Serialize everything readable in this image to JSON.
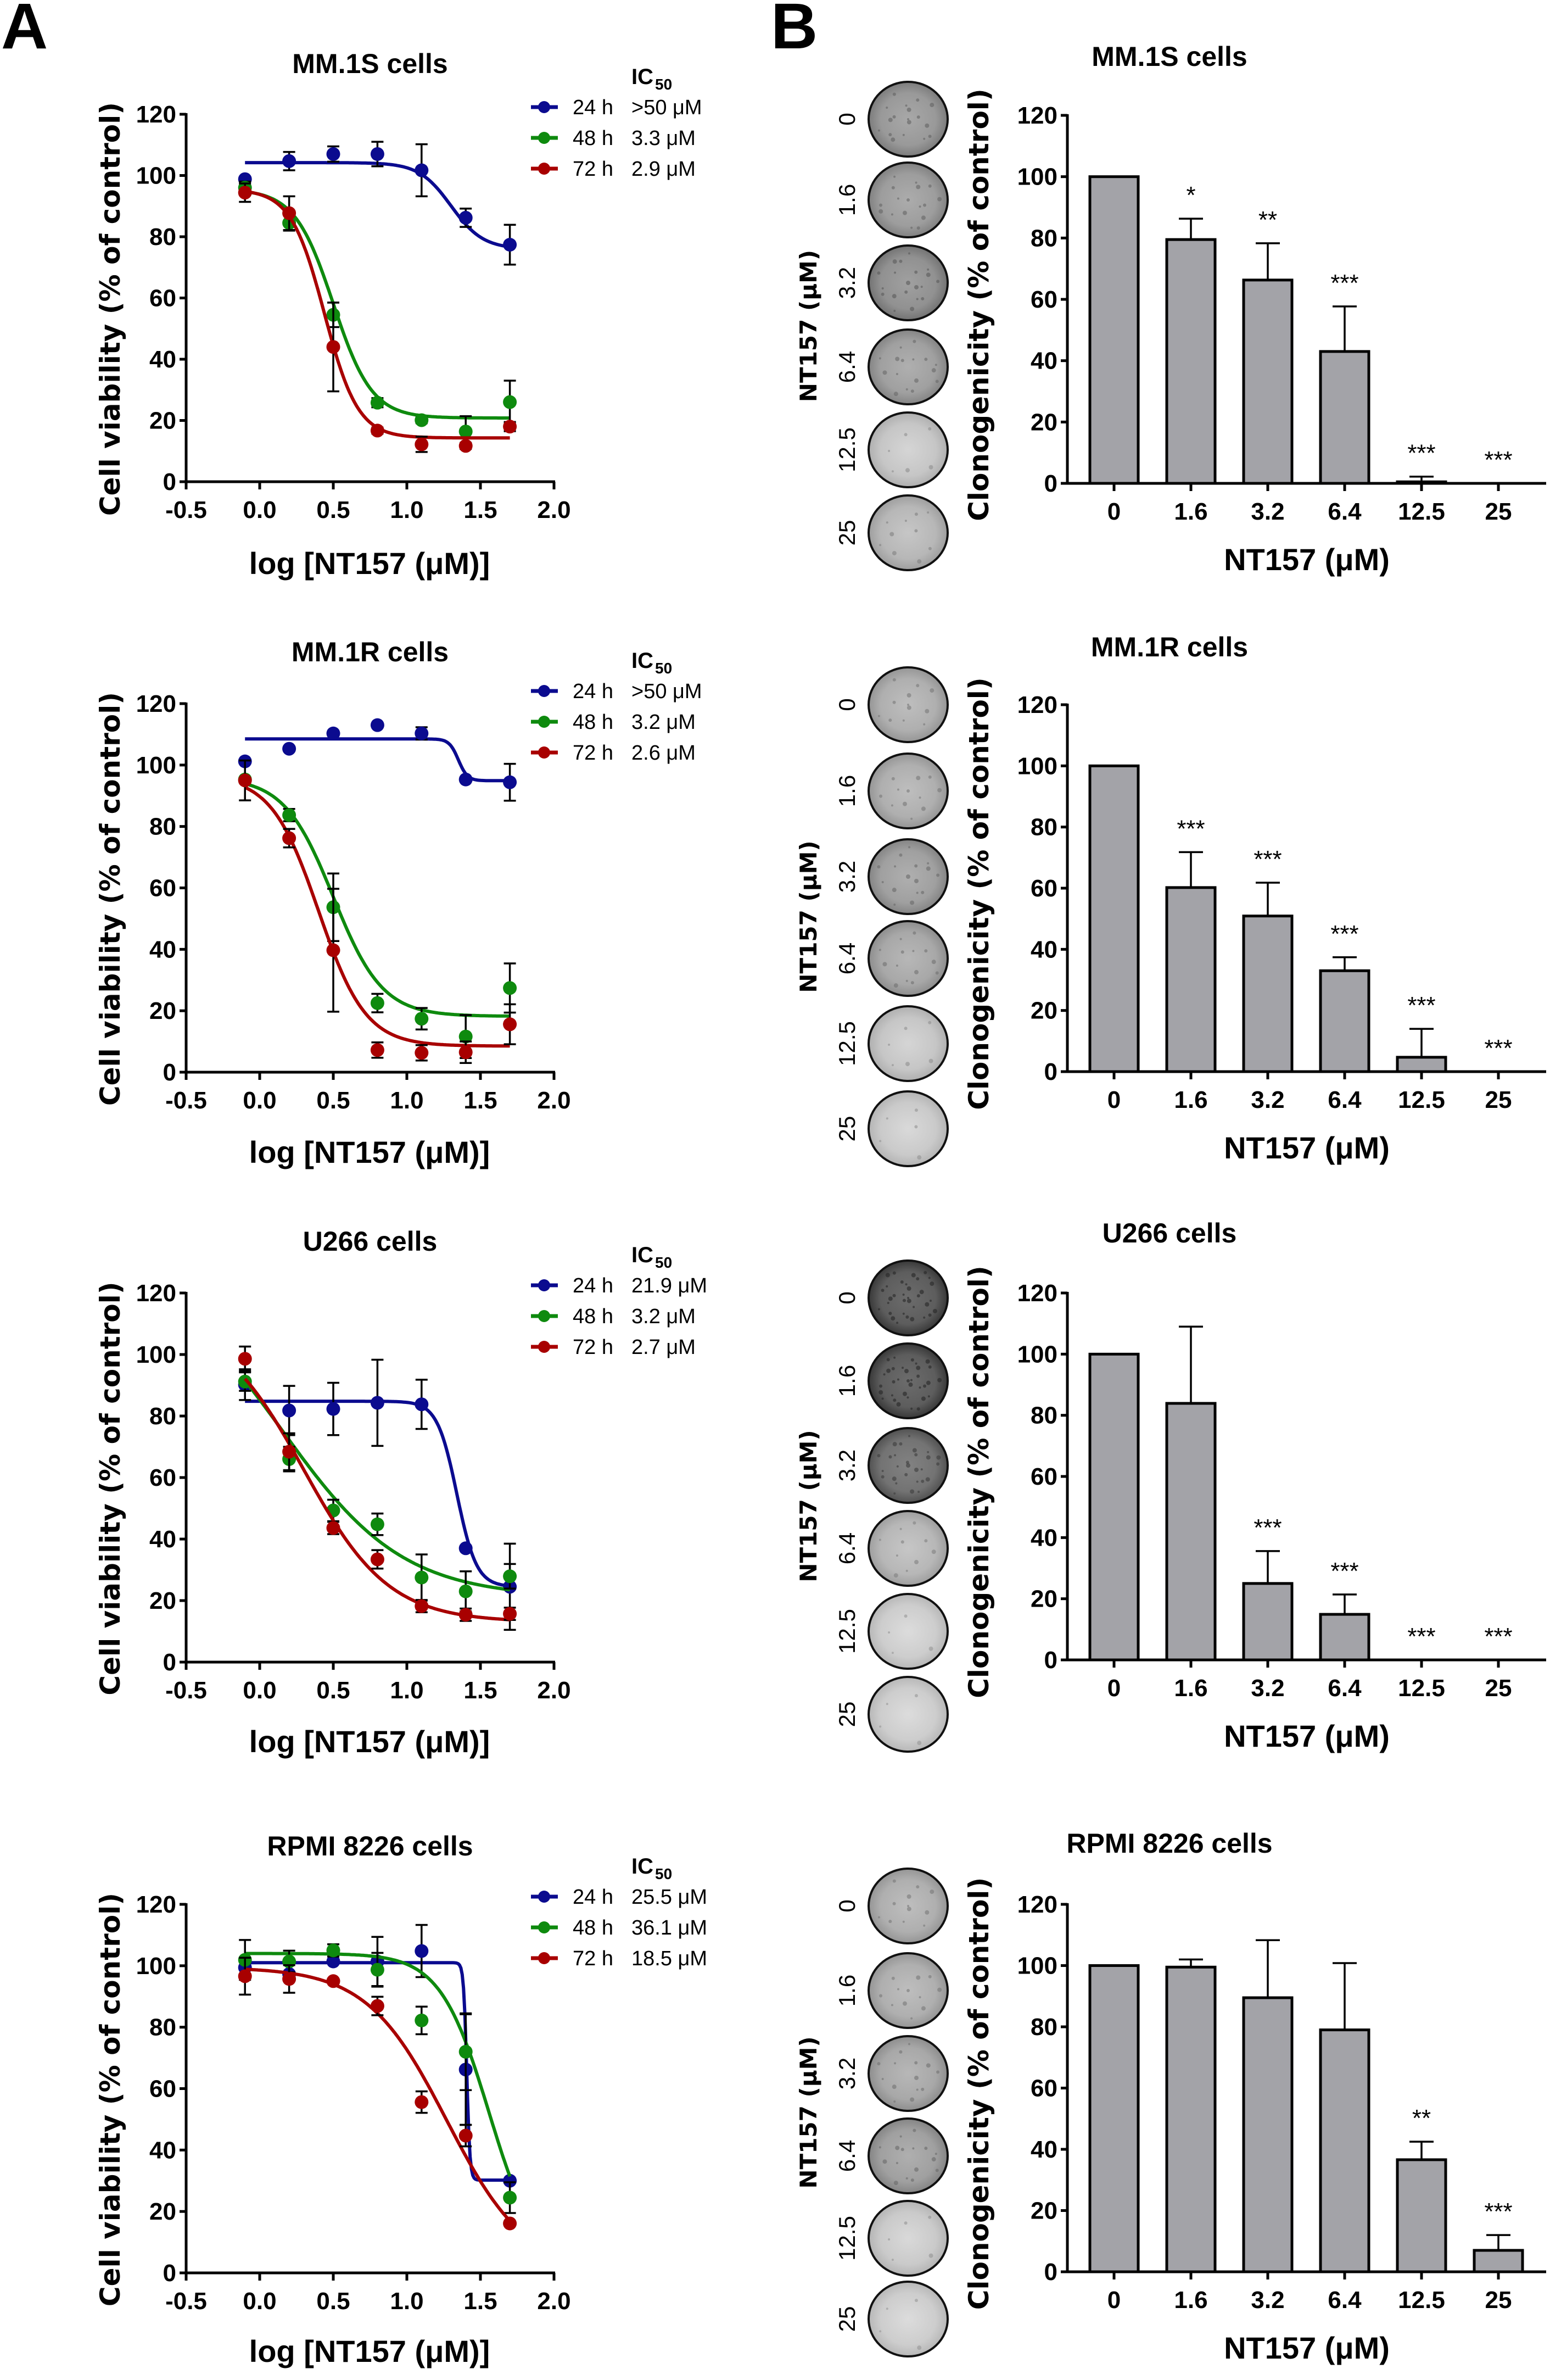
{
  "figure": {
    "panel_letters": [
      "A",
      "B"
    ]
  },
  "series_colors": {
    "24 h": "#0b0b8f",
    "48 h": "#0e8a0e",
    "72 h": "#a80000"
  },
  "bar_color": "#a3a3a8",
  "chart_data": [
    {
      "id": "A1",
      "panel": "A",
      "type": "line",
      "title": "MM.1S cells",
      "xlabel": "log [NT157 (μM)]",
      "ylabel": "Cell viability (% of control)",
      "xlim": [
        -0.5,
        2.0
      ],
      "ylim": [
        0,
        120
      ],
      "xticks": [
        "-0.5",
        "0.0",
        "0.5",
        "1.0",
        "1.5",
        "2.0"
      ],
      "yticks": [
        "0",
        "20",
        "40",
        "60",
        "80",
        "100",
        "120"
      ],
      "legend_title": "IC",
      "legend_title_sub": "50",
      "legend_position": "top-right",
      "x": [
        -0.1,
        0.2,
        0.5,
        0.8,
        1.1,
        1.4,
        1.7
      ],
      "series": [
        {
          "name": "24 h",
          "ic50_label": ">50 μM",
          "values": [
            98.8,
            104.7,
            107,
            107,
            101.7,
            86.2,
            77.4
          ],
          "errors": [
            0,
            3,
            2.5,
            4,
            8.5,
            3,
            6.5
          ],
          "fit": {
            "top": 104.2,
            "bottom": 76,
            "logec50": 1.3,
            "hill": 4.0
          }
        },
        {
          "name": "48 h",
          "ic50_label": "3.3 μM",
          "values": [
            96,
            84.5,
            54.5,
            25.8,
            20.1,
            16.4,
            26
          ],
          "errors": [
            2,
            2.5,
            4,
            1.5,
            1,
            5,
            7
          ],
          "fit": {
            "top": 95.5,
            "bottom": 20.8,
            "logec50": 0.5,
            "hill": 3.3
          }
        },
        {
          "name": "72 h",
          "ic50_label": "2.9 μM",
          "values": [
            94.4,
            87.7,
            44,
            16.7,
            12.2,
            11.7,
            18
          ],
          "errors": [
            3,
            5.5,
            14.5,
            1,
            2.5,
            1,
            1.5
          ],
          "fit": {
            "top": 95.5,
            "bottom": 14.3,
            "logec50": 0.44,
            "hill": 3.8
          }
        }
      ]
    },
    {
      "id": "A2",
      "panel": "A",
      "type": "line",
      "title": "MM.1R cells",
      "xlabel": "log [NT157 (μM)]",
      "ylabel": "Cell viability (% of control)",
      "xlim": [
        -0.5,
        2.0
      ],
      "ylim": [
        0,
        120
      ],
      "xticks": [
        "-0.5",
        "0.0",
        "0.5",
        "1.0",
        "1.5",
        "2.0"
      ],
      "yticks": [
        "0",
        "20",
        "40",
        "60",
        "80",
        "100",
        "120"
      ],
      "legend_title": "IC",
      "legend_title_sub": "50",
      "legend_position": "top-right",
      "x": [
        -0.1,
        0.2,
        0.5,
        0.8,
        1.1,
        1.4,
        1.7
      ],
      "series": [
        {
          "name": "24 h",
          "ic50_label": ">50 μM",
          "values": [
            101.2,
            105.3,
            110.3,
            113,
            110.3,
            95.3,
            94.4
          ],
          "errors": [
            0,
            0,
            0,
            0,
            2,
            0,
            6
          ],
          "fit": {
            "top": 108.5,
            "bottom": 94.9,
            "logec50": 1.35,
            "hill": 14
          }
        },
        {
          "name": "48 h",
          "ic50_label": "3.2 μM",
          "values": [
            95.3,
            83.7,
            53.7,
            22.5,
            17.4,
            11.6,
            27.4
          ],
          "errors": [
            0,
            2,
            11,
            3,
            3.5,
            7,
            8
          ],
          "fit": {
            "top": 96,
            "bottom": 18.2,
            "logec50": 0.5,
            "hill": 2.6
          }
        },
        {
          "name": "72 h",
          "ic50_label": "2.6 μM",
          "values": [
            95,
            76.2,
            39.7,
            7.2,
            6.3,
            6.5,
            15.6
          ],
          "errors": [
            6.5,
            3,
            20,
            2.5,
            2.5,
            3.5,
            6.5
          ],
          "fit": {
            "top": 96.5,
            "bottom": 8.5,
            "logec50": 0.4,
            "hill": 2.7
          }
        }
      ]
    },
    {
      "id": "A3",
      "panel": "A",
      "type": "line",
      "title": "U266 cells",
      "xlabel": "log [NT157 (μM)]",
      "ylabel": "Cell viability (% of control)",
      "xlim": [
        -0.5,
        2.0
      ],
      "ylim": [
        0,
        120
      ],
      "xticks": [
        "-0.5",
        "0.0",
        "0.5",
        "1.0",
        "1.5",
        "2.0"
      ],
      "yticks": [
        "0",
        "20",
        "40",
        "60",
        "80",
        "100",
        "120"
      ],
      "legend_title": "IC",
      "legend_title_sub": "50",
      "legend_position": "top-right",
      "x": [
        -0.1,
        0.2,
        0.5,
        0.8,
        1.1,
        1.4,
        1.7
      ],
      "series": [
        {
          "name": "24 h",
          "ic50_label": "21.9 μM",
          "values": [
            90.2,
            81.8,
            82.3,
            84.3,
            83.8,
            37,
            24.5
          ],
          "errors": [
            5,
            8,
            8.5,
            14,
            8,
            0,
            14
          ],
          "fit": {
            "top": 84.8,
            "bottom": 24.5,
            "logec50": 1.34,
            "hill": 6.5
          }
        },
        {
          "name": "48 h",
          "ic50_label": "3.2 μM",
          "values": [
            91.2,
            66,
            49.3,
            44.8,
            27.5,
            23,
            27.9
          ],
          "errors": [
            3,
            4,
            3.5,
            3.5,
            7.5,
            6.5,
            4
          ],
          "fit": {
            "top": 130,
            "bottom": 21,
            "logec50": 0.15,
            "hill": 1.05
          }
        },
        {
          "name": "72 h",
          "ic50_label": "2.7 μM",
          "values": [
            98.6,
            68.4,
            43.6,
            33.4,
            18.2,
            15.4,
            15.7
          ],
          "errors": [
            4,
            6,
            2,
            3,
            2,
            2,
            2
          ],
          "fit": {
            "top": 112,
            "bottom": 13,
            "logec50": 0.3,
            "hill": 1.5
          }
        }
      ]
    },
    {
      "id": "A4",
      "panel": "A",
      "type": "line",
      "title": "RPMI 8226 cells",
      "xlabel": "log [NT157 (μM)]",
      "ylabel": "Cell viability (% of control)",
      "xlim": [
        -0.5,
        2.0
      ],
      "ylim": [
        0,
        120
      ],
      "xticks": [
        "-0.5",
        "0.0",
        "0.5",
        "1.0",
        "1.5",
        "2.0"
      ],
      "yticks": [
        "0",
        "20",
        "40",
        "60",
        "80",
        "100",
        "120"
      ],
      "legend_title": "IC",
      "legend_title_sub": "50",
      "legend_position": "top-right",
      "x": [
        -0.1,
        0.2,
        0.5,
        0.8,
        1.1,
        1.4,
        1.7
      ],
      "series": [
        {
          "name": "24 h",
          "ic50_label": "25.5 μM",
          "values": [
            99.4,
            97.3,
            101.4,
            101.4,
            104.8,
            66.2,
            30
          ],
          "errors": [
            0,
            0,
            0,
            8,
            8.5,
            18,
            0
          ],
          "fit": {
            "top": 101,
            "bottom": 30.2,
            "logec50": 1.407,
            "hill": 40
          }
        },
        {
          "name": "48 h",
          "ic50_label": "36.1 μM",
          "values": [
            101.9,
            101.4,
            105,
            98.7,
            82.2,
            72,
            24.5
          ],
          "errors": [
            6.5,
            3.5,
            2,
            5.5,
            4.5,
            12.5,
            5
          ],
          "fit": {
            "top": 104,
            "bottom": 0,
            "logec50": 1.56,
            "hill": 2.6
          }
        },
        {
          "name": "72 h",
          "ic50_label": "18.5 μM",
          "values": [
            96.6,
            95.7,
            95,
            86.9,
            55.6,
            44.7,
            16.1
          ],
          "errors": [
            6,
            4.5,
            0,
            3,
            3.5,
            3.5,
            0
          ],
          "fit": {
            "top": 99.5,
            "bottom": 0,
            "logec50": 1.27,
            "hill": 1.6
          }
        }
      ]
    },
    {
      "id": "B1",
      "panel": "B",
      "type": "bar",
      "title": "MM.1S cells",
      "xlabel": "NT157 (μM)",
      "ylabel": "Clonogenicity (% of control)",
      "plate_axis_label": "NT157 (μM)",
      "ylim": [
        0,
        120
      ],
      "yticks": [
        "0",
        "20",
        "40",
        "60",
        "80",
        "100",
        "120"
      ],
      "categories": [
        "0",
        "1.6",
        "3.2",
        "6.4",
        "12.5",
        "25"
      ],
      "values": [
        100,
        79.5,
        66.3,
        43,
        0.5,
        0
      ],
      "errors": [
        0,
        6.8,
        12,
        14.7,
        1.7,
        0
      ],
      "significance": [
        "",
        "*",
        "**",
        "***",
        "***",
        "***"
      ],
      "plate_density": [
        0.45,
        0.42,
        0.5,
        0.4,
        0.15,
        0.25
      ]
    },
    {
      "id": "B2",
      "panel": "B",
      "type": "bar",
      "title": "MM.1R cells",
      "xlabel": "NT157 (μM)",
      "ylabel": "Clonogenicity (% of control)",
      "plate_axis_label": "NT157 (μM)",
      "ylim": [
        0,
        120
      ],
      "yticks": [
        "0",
        "20",
        "40",
        "60",
        "80",
        "100",
        "120"
      ],
      "categories": [
        "0",
        "1.6",
        "3.2",
        "6.4",
        "12.5",
        "25"
      ],
      "values": [
        100,
        60.2,
        50.9,
        33,
        4.7,
        0
      ],
      "errors": [
        0,
        11.6,
        10.9,
        4.4,
        9.3,
        0
      ],
      "significance": [
        "",
        "***",
        "***",
        "***",
        "***",
        "***"
      ],
      "plate_density": [
        0.3,
        0.3,
        0.4,
        0.35,
        0.15,
        0.12
      ]
    },
    {
      "id": "B3",
      "panel": "B",
      "type": "bar",
      "title": "U266 cells",
      "xlabel": "NT157 (μM)",
      "ylabel": "Clonogenicity (% of control)",
      "plate_axis_label": "NT157 (μM)",
      "ylim": [
        0,
        120
      ],
      "yticks": [
        "0",
        "20",
        "40",
        "60",
        "80",
        "100",
        "120"
      ],
      "categories": [
        "0",
        "1.6",
        "3.2",
        "6.4",
        "12.5",
        "25"
      ],
      "values": [
        100,
        83.9,
        25,
        14.9,
        0,
        0
      ],
      "errors": [
        0,
        25.1,
        10.6,
        6.5,
        0,
        0
      ],
      "significance": [
        "",
        "",
        "***",
        "***",
        "***",
        "***"
      ],
      "plate_density": [
        0.85,
        0.85,
        0.7,
        0.25,
        0.1,
        0.1
      ]
    },
    {
      "id": "B4",
      "panel": "B",
      "type": "bar",
      "title": "RPMI 8226 cells",
      "xlabel": "NT157 (μM)",
      "ylabel": "Clonogenicity (% of control)",
      "plate_axis_label": "NT157 (μM)",
      "ylim": [
        0,
        120
      ],
      "yticks": [
        "0",
        "20",
        "40",
        "60",
        "80",
        "100",
        "120"
      ],
      "categories": [
        "0",
        "1.6",
        "3.2",
        "6.4",
        "12.5",
        "25"
      ],
      "values": [
        100,
        99.5,
        89.5,
        79,
        36.6,
        7
      ],
      "errors": [
        0,
        2.5,
        18.8,
        21.8,
        5.9,
        5
      ],
      "significance": [
        "",
        "",
        "",
        "",
        "**",
        "***"
      ],
      "plate_density": [
        0.3,
        0.3,
        0.35,
        0.4,
        0.12,
        0.1
      ]
    }
  ]
}
